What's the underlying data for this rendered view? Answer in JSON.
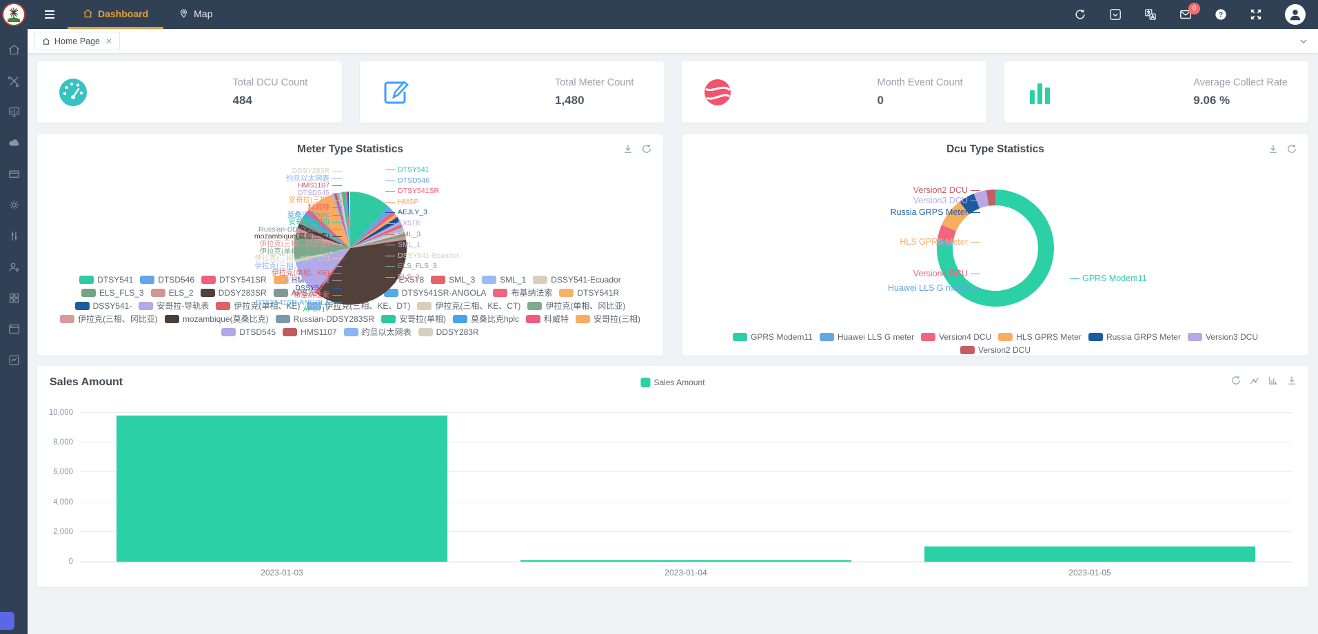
{
  "header": {
    "nav": [
      {
        "label": "Dashboard",
        "icon": "home-icon",
        "active": true
      },
      {
        "label": "Map",
        "icon": "map-pin-icon",
        "active": false
      }
    ],
    "mail_badge": "0"
  },
  "tabbar": {
    "tabs": [
      {
        "label": "Home Page"
      }
    ]
  },
  "sidebar": {
    "items": [
      {
        "icon": "home-icon"
      },
      {
        "icon": "tools-icon"
      },
      {
        "icon": "monitor-chart-icon"
      },
      {
        "icon": "cloud-icon"
      },
      {
        "icon": "card-icon"
      },
      {
        "icon": "gear-icon"
      },
      {
        "icon": "sliders-icon"
      },
      {
        "icon": "user-settings-icon"
      },
      {
        "icon": "grid-icon"
      },
      {
        "icon": "window-icon"
      },
      {
        "icon": "chart-box-icon"
      }
    ]
  },
  "cards": [
    {
      "label": "Total DCU Count",
      "value": "484",
      "icon": "gauge-icon",
      "color": "#35c3c1"
    },
    {
      "label": "Total Meter Count",
      "value": "1,480",
      "icon": "edit-icon",
      "color": "#409EFF"
    },
    {
      "label": "Month Event Count",
      "value": "0",
      "icon": "globe-icon",
      "color": "#f2536d"
    },
    {
      "label": "Average Collect Rate",
      "value": "9.06 %",
      "icon": "bar-chart-icon",
      "color": "#2BD0A6"
    }
  ],
  "chart_data": [
    {
      "type": "pie",
      "title": "Meter Type Statistics",
      "legend_position": "bottom",
      "items": [
        {
          "label": "DTSY541",
          "value": 11.5,
          "color": "#2FC9A2"
        },
        {
          "label": "DTSD546",
          "value": 1.8,
          "color": "#63A5E5"
        },
        {
          "label": "DTSY541SR",
          "value": 1.2,
          "color": "#EF617C"
        },
        {
          "label": "HMSP",
          "value": 0.9,
          "color": "#F9AB61"
        },
        {
          "label": "AEJLY_3",
          "value": 1.4,
          "color": "#17548F"
        },
        {
          "label": "EX5T8",
          "value": 0.9,
          "color": "#B3A5E6"
        },
        {
          "label": "SML_3",
          "value": 0.9,
          "color": "#E5636A"
        },
        {
          "label": "SML_1",
          "value": 0.9,
          "color": "#9DB8F2"
        },
        {
          "label": "DSSY541-Ecuador",
          "value": 0.9,
          "color": "#D9D0BC"
        },
        {
          "label": "ELS_FLS_3",
          "value": 0.9,
          "color": "#73A287"
        },
        {
          "label": "ELS_2",
          "value": 0.9,
          "color": "#D39494"
        },
        {
          "label": "DDSY283SR",
          "value": 36.5,
          "color": "#52403A"
        },
        {
          "label": "APS737",
          "value": 0.4,
          "color": "#7F9A94"
        },
        {
          "label": "APS717",
          "value": 0.4,
          "color": "#2BC285"
        },
        {
          "label": "DTSY541SR-ANGOLA",
          "value": 0.4,
          "color": "#57A8E8"
        },
        {
          "label": "布基纳法索",
          "value": 0.4,
          "color": "#F2647E"
        },
        {
          "label": "DTSY541R",
          "value": 0.4,
          "color": "#F9B16A"
        },
        {
          "label": "DSSY541-",
          "value": 0.4,
          "color": "#1B5C9E"
        },
        {
          "label": "安哥拉-导轨表",
          "value": 9.0,
          "color": "#B5A8E8"
        },
        {
          "label": "伊拉克(单相、KE)",
          "value": 0.9,
          "color": "#E06065"
        },
        {
          "label": "伊拉克(三相、KE、DT)",
          "value": 0.9,
          "color": "#93B4F0"
        },
        {
          "label": "伊拉克(三相、KE、CT)",
          "value": 0.9,
          "color": "#D8CFBA"
        },
        {
          "label": "伊拉克(单相、冈比亚)",
          "value": 7.0,
          "color": "#7EA98C"
        },
        {
          "label": "伊拉克(三相、冈比亚)",
          "value": 1.8,
          "color": "#D99A9C"
        },
        {
          "label": "mozambique(莫桑比克)",
          "value": 1.4,
          "color": "#503C36"
        },
        {
          "label": "Russian-DDSY283SR",
          "value": 1.4,
          "color": "#7D98A8"
        },
        {
          "label": "安哥拉(单相)",
          "value": 0.9,
          "color": "#2BC9A0"
        },
        {
          "label": "莫桑比克hplc",
          "value": 1.1,
          "color": "#4AA3E8"
        },
        {
          "label": "科威特",
          "value": 1.4,
          "color": "#F05B7E"
        },
        {
          "label": "安哥拉(三相)",
          "value": 7.5,
          "color": "#F9AB60"
        },
        {
          "label": "DTSD545",
          "value": 0.7,
          "color": "#B4A7E6"
        },
        {
          "label": "HMS1107",
          "value": 0.7,
          "color": "#C05A5E"
        },
        {
          "label": "约旦以太网表",
          "value": 0.7,
          "color": "#8CB4F2"
        },
        {
          "label": "DDSY283R",
          "value": 0.7,
          "color": "#D8CFC0"
        }
      ],
      "draw_order": [
        "DTSY541",
        "DTSD546",
        "DTSY541SR",
        "HMSP",
        "AEJLY_3",
        "EX5T8",
        "SML_3",
        "SML_1",
        "DSSY541-Ecuador",
        "ELS_FLS_3",
        "ELS_2",
        "DDSY283SR",
        "伊拉克(单相、KE)",
        "安哥拉-导轨表",
        "伊拉克(三相、KE、DT)",
        "伊拉克(三相、KE、CT)",
        "伊拉克(单相、冈比亚)",
        "伊拉克(三相、冈比亚)",
        "mozambique(莫桑比克)",
        "Russian-DDSY283SR",
        "安哥拉(单相)",
        "莫桑比克hplc",
        "科威特",
        "安哥拉(三相)",
        "DTSD545",
        "HMS1107",
        "约旦以太网表",
        "DDSY283R",
        "APS737",
        "APS717",
        "DTSY541SR-ANGOLA",
        "布基纳法索",
        "DSSY541-"
      ],
      "callouts_left": [
        "DDSY283R",
        "约旦以太网表",
        "HMS1107",
        "DTSD545",
        "安哥拉(三相)",
        "科威特",
        "莫桑比克hplc",
        "安哥拉(单相)",
        "Russian-DDSY283SR",
        "mozambique(莫桑比克)",
        "伊拉克(三相、冈比亚)",
        "伊拉克(单相、冈比亚)",
        "伊拉克(三相、KE、CT)",
        "伊拉克(三相、KE、DT)",
        "伊拉克(单相、KE)",
        "安哥拉-导轨表",
        "DSSY541-",
        "布基纳法索",
        "DTSY541SR-ANGOLA",
        "APS717"
      ],
      "callouts_right": [
        "DTSY541",
        "DTSD546",
        "DTSY541SR",
        "HMSP",
        "AEJLY_3",
        "EX5T8",
        "SML_3",
        "SML_1",
        "DSSY541-Ecuador",
        "ELS_FLS_3",
        "ELS_2"
      ]
    },
    {
      "type": "pie",
      "subtype": "donut",
      "title": "Dcu Type Statistics",
      "legend_position": "bottom",
      "items": [
        {
          "label": "GPRS Modem11",
          "value": 76,
          "color": "#2BD0A6"
        },
        {
          "label": "Huawei LLS G meter",
          "value": 1.5,
          "color": "#64A6E4"
        },
        {
          "label": "Version4 DCU",
          "value": 4,
          "color": "#F2647F"
        },
        {
          "label": "HLS GPRS Meter",
          "value": 8,
          "color": "#F9AD61"
        },
        {
          "label": "Russia GRPS Meter",
          "value": 4.5,
          "color": "#1B5C9E"
        },
        {
          "label": "Version3 DCU",
          "value": 3.5,
          "color": "#B8A8E4"
        },
        {
          "label": "Version2 DCU",
          "value": 2.5,
          "color": "#C65D64"
        }
      ],
      "draw_order": [
        "GPRS Modem11",
        "Huawei LLS G meter",
        "Version4 DCU",
        "HLS GPRS Meter",
        "Russia GRPS Meter",
        "Version3 DCU",
        "Version2 DCU"
      ],
      "callouts_left": [
        "Version2 DCU",
        "Version3 DCU",
        "Russia GRPS Meter",
        "HLS GPRS Meter",
        "Version4 DCU",
        "Huawei LLS G meter"
      ],
      "callouts_right": [
        "GPRS Modem11"
      ]
    },
    {
      "type": "bar",
      "title": "Sales Amount",
      "series_name": "Sales Amount",
      "color": "#2BD0A6",
      "categories": [
        "2023-01-03",
        "2023-01-04",
        "2023-01-05"
      ],
      "values": [
        9800,
        100,
        1000
      ],
      "ylim": [
        0,
        10000
      ],
      "yticks": [
        0,
        2000,
        4000,
        6000,
        8000,
        10000
      ],
      "grid": true,
      "legend_position": "top-center"
    }
  ]
}
